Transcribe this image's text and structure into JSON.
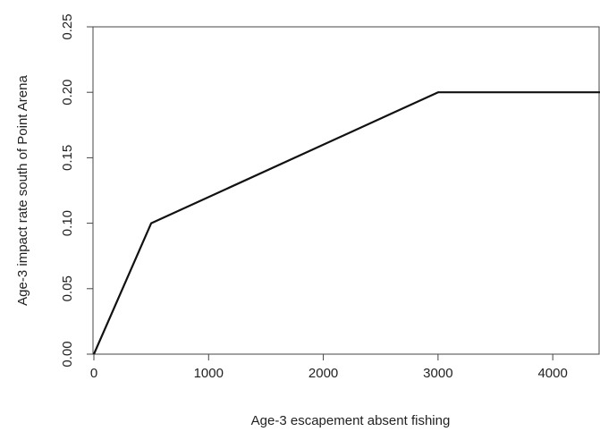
{
  "chart_data": {
    "type": "line",
    "title": "",
    "xlabel": "Age-3 escapement absent fishing",
    "ylabel": "Age-3 impact rate south of Point Arena",
    "xlim": [
      0,
      4500
    ],
    "ylim": [
      0,
      0.25
    ],
    "x_ticks": [
      0,
      1000,
      2000,
      3000,
      4000
    ],
    "x_tick_labels": [
      "0",
      "1000",
      "2000",
      "3000",
      "4000"
    ],
    "y_ticks": [
      0,
      0.05,
      0.1,
      0.15,
      0.2,
      0.25
    ],
    "y_tick_labels": [
      "0.00",
      "0.05",
      "0.10",
      "0.15",
      "0.20",
      "0.25"
    ],
    "grid": false,
    "legend": "none",
    "series": [
      {
        "x": [
          0,
          500,
          3000,
          4500
        ],
        "y": [
          0,
          0.1,
          0.2,
          0.2
        ],
        "color": "#111111"
      }
    ]
  }
}
